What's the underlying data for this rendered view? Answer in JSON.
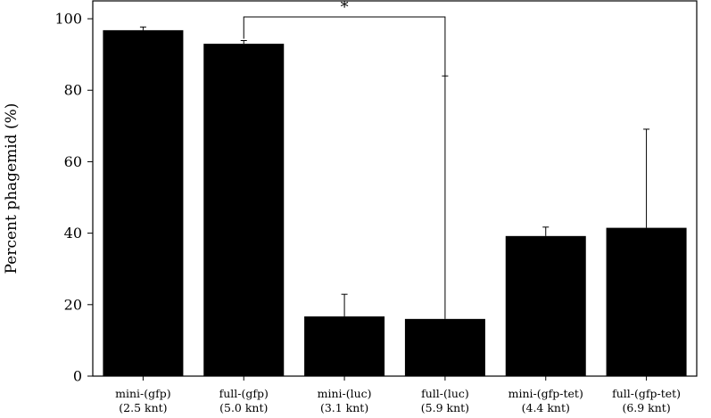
{
  "chart_data": {
    "type": "bar",
    "title": "",
    "xlabel": "",
    "ylabel": "Percent phagemid (%)",
    "ylim": [
      0,
      105
    ],
    "yticks": [
      0,
      20,
      40,
      60,
      80,
      100
    ],
    "grid": false,
    "legend": "none",
    "bar_color": "#000000",
    "categories": [
      [
        "mini-(gfp)",
        "(2.5 knt)"
      ],
      [
        "full-(gfp)",
        "(5.0 knt)"
      ],
      [
        "mini-(luc)",
        "(3.1 knt)"
      ],
      [
        "full-(luc)",
        "(5.9 knt)"
      ],
      [
        "mini-(gfp-tet)",
        "(4.4 knt)"
      ],
      [
        "full-(gfp-tet)",
        "(6.9 knt)"
      ]
    ],
    "values": [
      96.8,
      93.0,
      16.7,
      16.0,
      39.2,
      41.5
    ],
    "error_upper": [
      0.9,
      0.9,
      6.2,
      68.0,
      2.5,
      27.6
    ],
    "annotations": [
      {
        "type": "significance",
        "from": 1,
        "to": 3,
        "y": 100.5,
        "label": "*"
      }
    ]
  }
}
